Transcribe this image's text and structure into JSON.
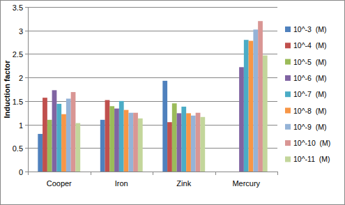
{
  "chart_data": {
    "type": "bar",
    "y_label": "Induction factor",
    "categories": [
      "Cooper",
      "Iron",
      "Zink",
      "Mercury"
    ],
    "series": [
      {
        "name": "10^-3  (M)",
        "color": "#4f81bd",
        "values": [
          0.8,
          1.1,
          1.93,
          null
        ]
      },
      {
        "name": "10^-4  (M)",
        "color": "#c0504d",
        "values": [
          1.57,
          1.52,
          1.05,
          null
        ]
      },
      {
        "name": "10^-5  (M)",
        "color": "#9bbb59",
        "values": [
          1.1,
          1.39,
          1.45,
          null
        ]
      },
      {
        "name": "10^-6  (M)",
        "color": "#8064a2",
        "values": [
          1.73,
          1.34,
          1.24,
          2.22
        ]
      },
      {
        "name": "10^-7  (M)",
        "color": "#4bacc6",
        "values": [
          1.44,
          1.5,
          1.38,
          2.8
        ]
      },
      {
        "name": "10^-8  (M)",
        "color": "#f79646",
        "values": [
          1.22,
          1.31,
          1.24,
          2.78
        ]
      },
      {
        "name": "10^-9  (M)",
        "color": "#95b3d7",
        "values": [
          1.55,
          1.25,
          1.19,
          3.02
        ]
      },
      {
        "name": "10^-10  (M)",
        "color": "#d99694",
        "values": [
          1.69,
          1.25,
          1.25,
          3.2
        ]
      },
      {
        "name": "10^-11  (M)",
        "color": "#c3d69b",
        "values": [
          1.03,
          1.13,
          1.16,
          2.47
        ]
      }
    ],
    "ylim": [
      0,
      3.5
    ],
    "yticks": [
      0,
      0.5,
      1,
      1.5,
      2,
      2.5,
      3,
      3.5
    ],
    "grid": true,
    "legend": "right"
  }
}
